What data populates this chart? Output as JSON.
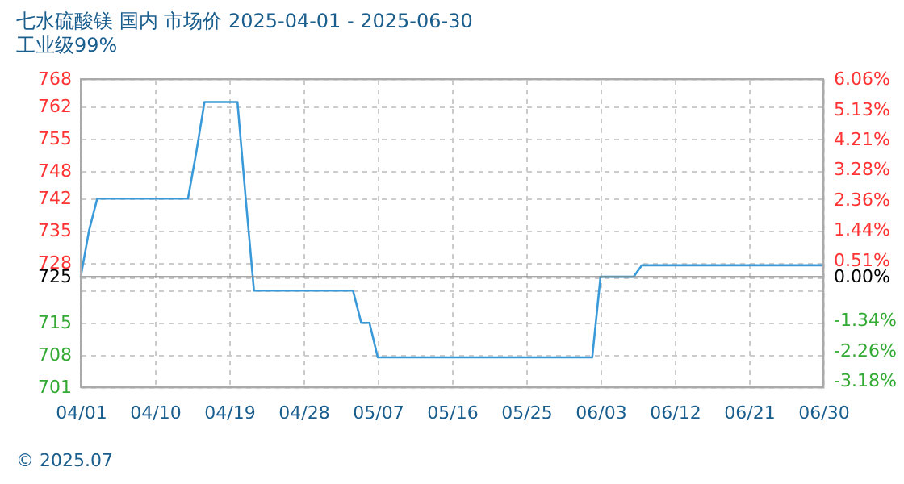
{
  "chart_data": {
    "type": "line",
    "title": "七水硫酸镁 国内 市场价 2025-04-01 - 2025-06-30",
    "subtitle": "工业级99%",
    "x": [
      "2025-04-01",
      "2025-04-02",
      "2025-04-03",
      "2025-04-14",
      "2025-04-15",
      "2025-04-16",
      "2025-04-20",
      "2025-04-21",
      "2025-04-22",
      "2025-05-04",
      "2025-05-05",
      "2025-05-06",
      "2025-05-07",
      "2025-06-02",
      "2025-06-03",
      "2025-06-07",
      "2025-06-08",
      "2025-06-30"
    ],
    "series": [
      {
        "color": "#3a9ad9",
        "values": [
          725,
          735,
          742,
          742,
          752,
          763,
          763,
          742,
          722,
          722,
          715,
          715,
          707.5,
          707.5,
          725,
          725,
          727.5,
          727.5
        ]
      }
    ],
    "xlim": [
      "2025-04-01",
      "2025-06-30"
    ],
    "xticks": [
      {
        "value": "2025-04-01",
        "label": "04/01"
      },
      {
        "value": "2025-04-10",
        "label": "04/10"
      },
      {
        "value": "2025-04-19",
        "label": "04/19"
      },
      {
        "value": "2025-04-28",
        "label": "04/28"
      },
      {
        "value": "2025-05-07",
        "label": "05/07"
      },
      {
        "value": "2025-05-16",
        "label": "05/16"
      },
      {
        "value": "2025-05-25",
        "label": "05/25"
      },
      {
        "value": "2025-06-03",
        "label": "06/03"
      },
      {
        "value": "2025-06-12",
        "label": "06/12"
      },
      {
        "value": "2025-06-21",
        "label": "06/21"
      },
      {
        "value": "2025-06-30",
        "label": "06/30"
      }
    ],
    "ylim": [
      701,
      768
    ],
    "yticks": [
      701,
      708,
      715,
      {
        "value": 722,
        "label": null
      },
      725,
      728,
      735,
      742,
      748,
      755,
      762,
      768
    ],
    "y2lim": [
      -3.38,
      6.06
    ],
    "y2ticks": [
      {
        "value": -3.18,
        "label": "-3.18%"
      },
      {
        "value": -2.26,
        "label": "-2.26%"
      },
      {
        "value": -1.34,
        "label": "-1.34%"
      },
      {
        "value": 0,
        "label": "0.00%"
      },
      {
        "value": 0.51,
        "label": "0.51%"
      },
      {
        "value": 1.44,
        "label": "1.44%"
      },
      {
        "value": 2.36,
        "label": "2.36%"
      },
      {
        "value": 3.28,
        "label": "3.28%"
      },
      {
        "value": 4.21,
        "label": "4.21%"
      },
      {
        "value": 5.13,
        "label": "5.13%"
      },
      {
        "value": 6.06,
        "label": "6.06%"
      }
    ],
    "ref_lines": [
      {
        "axis": "y",
        "value": 725,
        "color": "#888888",
        "line_style": "solid"
      }
    ],
    "grid": true,
    "marker": "none",
    "line_style": "solid",
    "annotations": [
      "© 2025.07"
    ]
  }
}
